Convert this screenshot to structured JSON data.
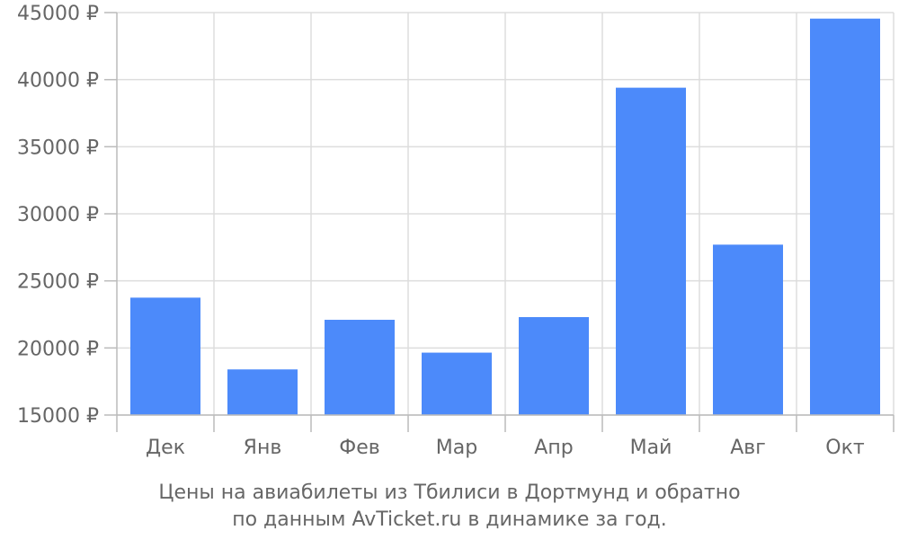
{
  "chart_data": {
    "type": "bar",
    "categories": [
      "Дек",
      "Янв",
      "Фев",
      "Мар",
      "Апр",
      "Май",
      "Авг",
      "Окт"
    ],
    "values": [
      23750,
      18400,
      22100,
      19650,
      22300,
      39400,
      27700,
      44550
    ],
    "y_ticks": [
      "15000 ₽",
      "20000 ₽",
      "25000 ₽",
      "30000 ₽",
      "35000 ₽",
      "40000 ₽",
      "45000 ₽"
    ],
    "ylim": [
      15000,
      45000
    ],
    "caption_line1": "Цены на авиабилеты из Тбилиси в Дортмунд и обратно",
    "caption_line2": "по данным AvTicket.ru в динамике за год.",
    "grid": true,
    "bar_color": "#4c8afa"
  }
}
